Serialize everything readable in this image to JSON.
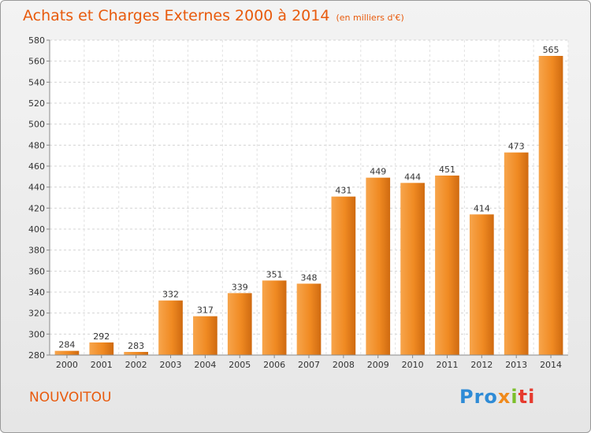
{
  "chart_data": {
    "type": "bar",
    "title": "Achats et Charges Externes 2000 à 2014",
    "subtitle": "(en milliers d'€)",
    "categories": [
      "2000",
      "2001",
      "2002",
      "2003",
      "2004",
      "2005",
      "2006",
      "2007",
      "2008",
      "2009",
      "2010",
      "2011",
      "2012",
      "2013",
      "2014"
    ],
    "values": [
      284,
      292,
      283,
      332,
      317,
      339,
      351,
      348,
      431,
      449,
      444,
      451,
      414,
      473,
      565
    ],
    "ylim": [
      280,
      580
    ],
    "yticks": [
      280,
      300,
      320,
      340,
      360,
      380,
      400,
      420,
      440,
      460,
      480,
      500,
      520,
      540,
      560,
      580
    ],
    "grid": true,
    "bar_color": "#f08a22"
  },
  "commune": "NOUVOITOU",
  "logo": {
    "p1": "Pro",
    "p2": "x",
    "p3": "i",
    "p4": "ti"
  }
}
